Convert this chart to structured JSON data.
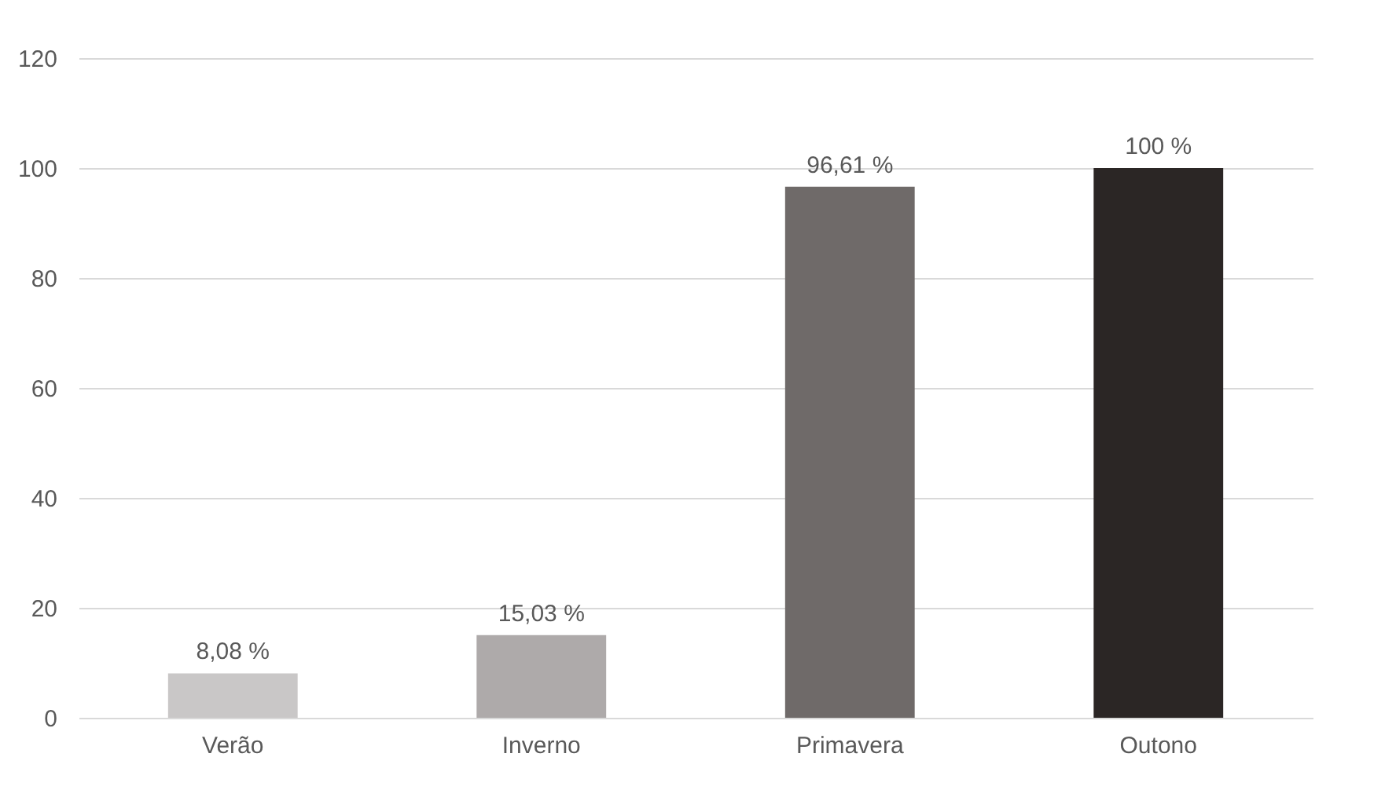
{
  "chart_data": {
    "type": "bar",
    "categories": [
      "Verão",
      "Inverno",
      "Primavera",
      "Outono"
    ],
    "values": [
      8.08,
      15.03,
      96.61,
      100
    ],
    "colors": [
      "#c9c7c7",
      "#aeaaaa",
      "#6f6a69",
      "#2b2625"
    ],
    "value_labels": [
      "8,08 %",
      "15,03 %",
      "96,61 %",
      "100 %"
    ],
    "ylim": [
      0,
      120
    ],
    "yticks": [
      0,
      20,
      40,
      60,
      80,
      100,
      120
    ],
    "grid": "y"
  }
}
